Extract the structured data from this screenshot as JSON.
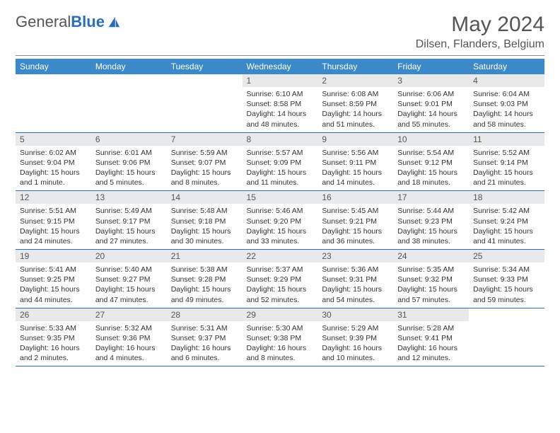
{
  "logo": {
    "word1": "General",
    "word2": "Blue"
  },
  "header": {
    "month_title": "May 2024",
    "location": "Dilsen, Flanders, Belgium"
  },
  "colors": {
    "header_bg": "#3b89c9",
    "header_text": "#ffffff",
    "daynum_bg": "#e8e9ea",
    "rule": "#2a6fb5",
    "text": "#333333"
  },
  "weekdays": [
    "Sunday",
    "Monday",
    "Tuesday",
    "Wednesday",
    "Thursday",
    "Friday",
    "Saturday"
  ],
  "weeks": [
    [
      null,
      null,
      null,
      {
        "n": "1",
        "sr": "6:10 AM",
        "ss": "8:58 PM",
        "dl": "14 hours and 48 minutes."
      },
      {
        "n": "2",
        "sr": "6:08 AM",
        "ss": "8:59 PM",
        "dl": "14 hours and 51 minutes."
      },
      {
        "n": "3",
        "sr": "6:06 AM",
        "ss": "9:01 PM",
        "dl": "14 hours and 55 minutes."
      },
      {
        "n": "4",
        "sr": "6:04 AM",
        "ss": "9:03 PM",
        "dl": "14 hours and 58 minutes."
      }
    ],
    [
      {
        "n": "5",
        "sr": "6:02 AM",
        "ss": "9:04 PM",
        "dl": "15 hours and 1 minute."
      },
      {
        "n": "6",
        "sr": "6:01 AM",
        "ss": "9:06 PM",
        "dl": "15 hours and 5 minutes."
      },
      {
        "n": "7",
        "sr": "5:59 AM",
        "ss": "9:07 PM",
        "dl": "15 hours and 8 minutes."
      },
      {
        "n": "8",
        "sr": "5:57 AM",
        "ss": "9:09 PM",
        "dl": "15 hours and 11 minutes."
      },
      {
        "n": "9",
        "sr": "5:56 AM",
        "ss": "9:11 PM",
        "dl": "15 hours and 14 minutes."
      },
      {
        "n": "10",
        "sr": "5:54 AM",
        "ss": "9:12 PM",
        "dl": "15 hours and 18 minutes."
      },
      {
        "n": "11",
        "sr": "5:52 AM",
        "ss": "9:14 PM",
        "dl": "15 hours and 21 minutes."
      }
    ],
    [
      {
        "n": "12",
        "sr": "5:51 AM",
        "ss": "9:15 PM",
        "dl": "15 hours and 24 minutes."
      },
      {
        "n": "13",
        "sr": "5:49 AM",
        "ss": "9:17 PM",
        "dl": "15 hours and 27 minutes."
      },
      {
        "n": "14",
        "sr": "5:48 AM",
        "ss": "9:18 PM",
        "dl": "15 hours and 30 minutes."
      },
      {
        "n": "15",
        "sr": "5:46 AM",
        "ss": "9:20 PM",
        "dl": "15 hours and 33 minutes."
      },
      {
        "n": "16",
        "sr": "5:45 AM",
        "ss": "9:21 PM",
        "dl": "15 hours and 36 minutes."
      },
      {
        "n": "17",
        "sr": "5:44 AM",
        "ss": "9:23 PM",
        "dl": "15 hours and 38 minutes."
      },
      {
        "n": "18",
        "sr": "5:42 AM",
        "ss": "9:24 PM",
        "dl": "15 hours and 41 minutes."
      }
    ],
    [
      {
        "n": "19",
        "sr": "5:41 AM",
        "ss": "9:25 PM",
        "dl": "15 hours and 44 minutes."
      },
      {
        "n": "20",
        "sr": "5:40 AM",
        "ss": "9:27 PM",
        "dl": "15 hours and 47 minutes."
      },
      {
        "n": "21",
        "sr": "5:38 AM",
        "ss": "9:28 PM",
        "dl": "15 hours and 49 minutes."
      },
      {
        "n": "22",
        "sr": "5:37 AM",
        "ss": "9:29 PM",
        "dl": "15 hours and 52 minutes."
      },
      {
        "n": "23",
        "sr": "5:36 AM",
        "ss": "9:31 PM",
        "dl": "15 hours and 54 minutes."
      },
      {
        "n": "24",
        "sr": "5:35 AM",
        "ss": "9:32 PM",
        "dl": "15 hours and 57 minutes."
      },
      {
        "n": "25",
        "sr": "5:34 AM",
        "ss": "9:33 PM",
        "dl": "15 hours and 59 minutes."
      }
    ],
    [
      {
        "n": "26",
        "sr": "5:33 AM",
        "ss": "9:35 PM",
        "dl": "16 hours and 2 minutes."
      },
      {
        "n": "27",
        "sr": "5:32 AM",
        "ss": "9:36 PM",
        "dl": "16 hours and 4 minutes."
      },
      {
        "n": "28",
        "sr": "5:31 AM",
        "ss": "9:37 PM",
        "dl": "16 hours and 6 minutes."
      },
      {
        "n": "29",
        "sr": "5:30 AM",
        "ss": "9:38 PM",
        "dl": "16 hours and 8 minutes."
      },
      {
        "n": "30",
        "sr": "5:29 AM",
        "ss": "9:39 PM",
        "dl": "16 hours and 10 minutes."
      },
      {
        "n": "31",
        "sr": "5:28 AM",
        "ss": "9:41 PM",
        "dl": "16 hours and 12 minutes."
      },
      null
    ]
  ],
  "labels": {
    "sunrise": "Sunrise:",
    "sunset": "Sunset:",
    "daylight": "Daylight:"
  }
}
